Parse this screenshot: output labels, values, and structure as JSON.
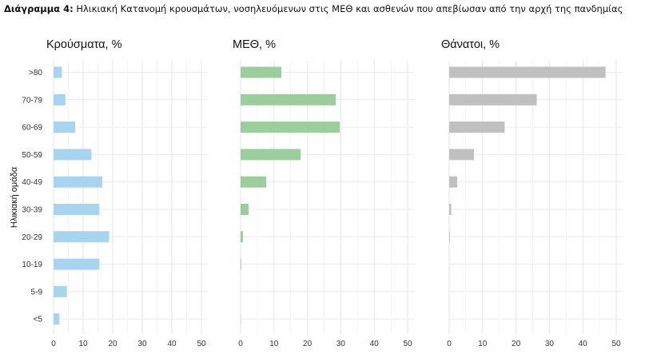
{
  "caption": {
    "prefix": "Διάγραμμα 4:",
    "text": "Ηλικιακή Κατανομή κρουσμάτων, νοσηλευόμενων στις ΜΕΘ και ασθενών που απεβίωσαν από την αρχή της πανδημίας"
  },
  "chart_data": {
    "type": "bar",
    "orientation": "horizontal",
    "ylabel": "Ηλικιακή ομάδα",
    "categories": [
      ">80",
      "70-79",
      "60-69",
      "50-59",
      "40-49",
      "30-39",
      "20-29",
      "10-19",
      "5-9",
      "<5"
    ],
    "xlim": [
      0,
      52
    ],
    "xticks": [
      0,
      10,
      20,
      30,
      40,
      50
    ],
    "grid": true,
    "panels": [
      {
        "title": "Κρούσματα, %",
        "color": "#a8d4ef",
        "values": [
          2.8,
          4.0,
          7.3,
          12.8,
          16.5,
          15.5,
          18.8,
          15.5,
          4.5,
          2.0
        ]
      },
      {
        "title": "ΜΕΘ, %",
        "color": "#9ccd9c",
        "values": [
          12.2,
          28.5,
          29.7,
          18.0,
          7.7,
          2.4,
          0.7,
          0.2,
          0.0,
          0.1
        ]
      },
      {
        "title": "Θάνατοι, %",
        "color": "#c0c0c0",
        "values": [
          46.8,
          26.2,
          16.6,
          7.4,
          2.4,
          0.6,
          0.2,
          0.0,
          0.0,
          0.0
        ]
      }
    ]
  }
}
